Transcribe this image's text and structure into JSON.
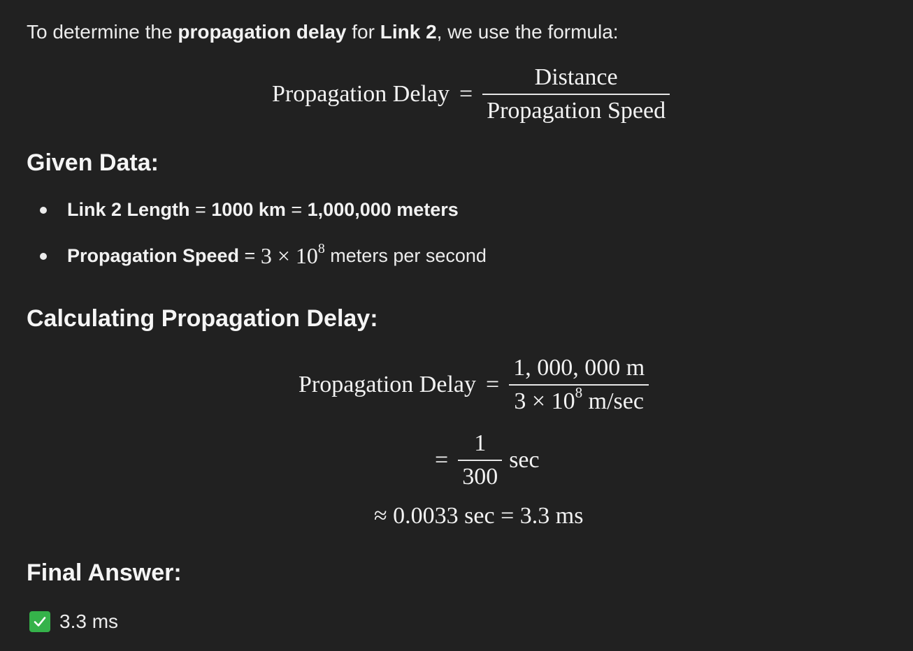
{
  "intro": {
    "prefix": "To determine the ",
    "term": "propagation delay",
    "mid": " for ",
    "link": "Link 2",
    "suffix": ", we use the formula:"
  },
  "formula1": {
    "lhs": "Propagation Delay",
    "eq": "=",
    "num": "Distance",
    "den": "Propagation Speed"
  },
  "given": {
    "heading": "Given Data:",
    "bullets": [
      {
        "label": "Link 2 Length",
        "eq": " = ",
        "value1": "1000 km",
        "eq2": " = ",
        "value2": "1,000,000 meters"
      },
      {
        "label": "Propagation Speed",
        "eq": " = ",
        "math_base": "3 × 10",
        "math_exp": "8",
        "rest": " meters per second"
      }
    ]
  },
  "calc": {
    "heading": "Calculating Propagation Delay:",
    "line1": {
      "lhs": "Propagation Delay",
      "eq": "=",
      "num": "1, 000, 000 m",
      "den_base": "3 × 10",
      "den_exp": "8",
      "den_unit": " m/sec"
    },
    "line2": {
      "eq": "=",
      "num": "1",
      "den": "300",
      "unit": "sec"
    },
    "line3": {
      "text": "≈ 0.0033 sec = 3.3 ms"
    }
  },
  "final": {
    "heading": "Final Answer:",
    "icon": "check-mark-icon",
    "answer": "3.3 ms",
    "icon_color": "#35b24a"
  }
}
